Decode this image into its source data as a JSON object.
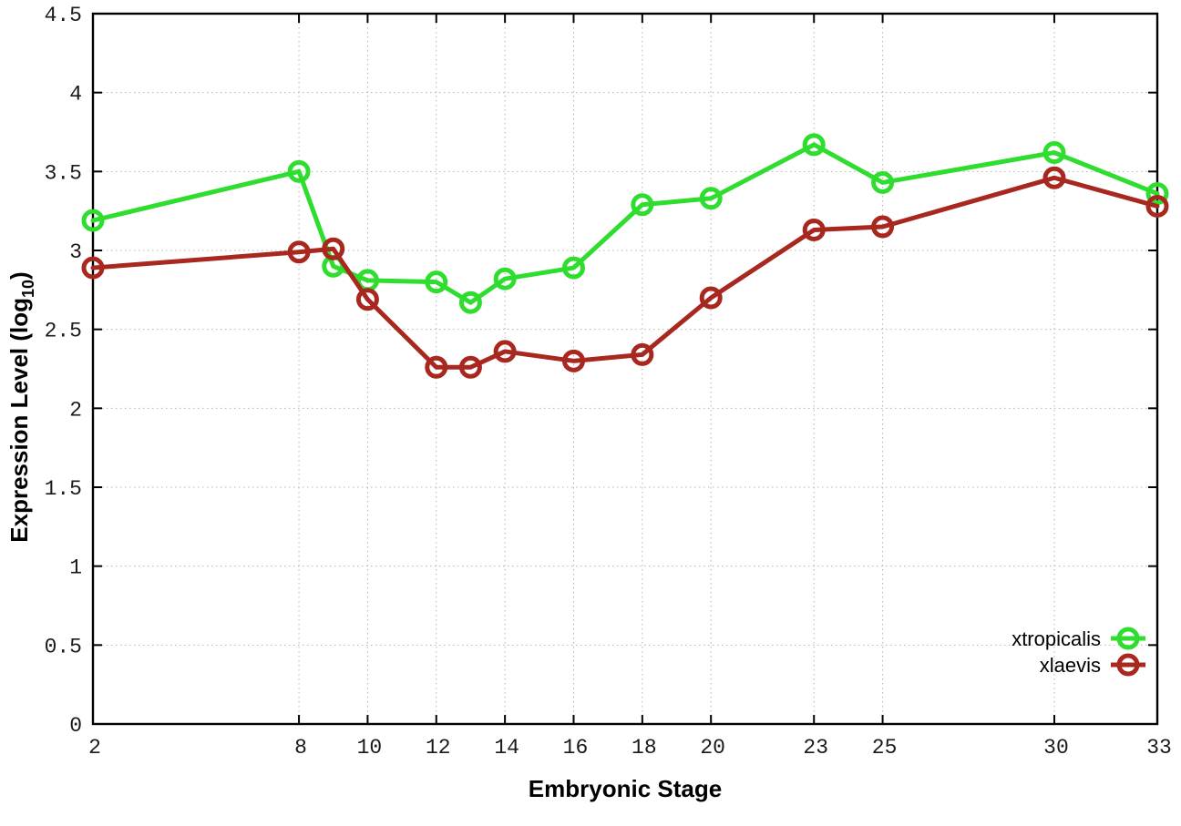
{
  "chart_data": {
    "type": "line",
    "title": "",
    "xlabel": "Embryonic Stage",
    "ylabel": "Expression Level (log10)",
    "ylabel_parts": {
      "main": "Expression Level (log",
      "sub": "10",
      "close": ")"
    },
    "x": [
      2,
      8,
      9,
      10,
      12,
      13,
      14,
      16,
      18,
      20,
      23,
      25,
      30,
      33
    ],
    "series": [
      {
        "name": "xtropicalis",
        "color": "#2edd2e",
        "values": [
          3.19,
          3.5,
          2.9,
          2.81,
          2.8,
          2.67,
          2.82,
          2.89,
          3.29,
          3.33,
          3.67,
          3.43,
          3.62,
          3.36
        ]
      },
      {
        "name": "xlaevis",
        "color": "#a8271f",
        "values": [
          2.89,
          2.99,
          3.01,
          2.69,
          2.26,
          2.26,
          2.36,
          2.3,
          2.34,
          2.7,
          3.13,
          3.15,
          3.46,
          3.28
        ]
      }
    ],
    "x_ticks": [
      2,
      8,
      10,
      12,
      14,
      16,
      18,
      20,
      23,
      25,
      30,
      33
    ],
    "y_ticks": [
      0,
      0.5,
      1,
      1.5,
      2,
      2.5,
      3,
      3.5,
      4,
      4.5
    ],
    "xlim": [
      2,
      33
    ],
    "ylim": [
      0,
      4.5
    ],
    "grid": true,
    "legend_position": "bottom-right",
    "marker": "open-circle",
    "line_style": "solid"
  },
  "colors": {
    "background": "#ffffff",
    "axis": "#000000",
    "grid": "#b4b4b4",
    "tick_label": "#1a1a1a",
    "legend_text": "#000000"
  }
}
